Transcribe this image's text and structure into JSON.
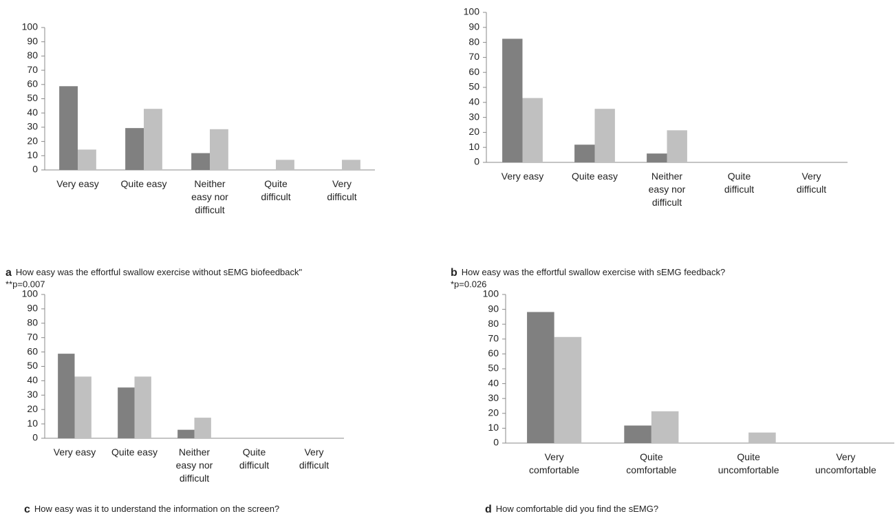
{
  "chart_data": [
    {
      "type": "bar",
      "label": "a",
      "caption": "How easy was the effortful swallow exercise without sEMG biofeedback\"",
      "note": "**p=0.007",
      "categories": [
        "Very easy",
        "Quite easy",
        "Neither easy nor difficult",
        "Quite difficult",
        "Very difficult"
      ],
      "series": [
        {
          "color": "#808080",
          "values": [
            58.8,
            29.4,
            11.8,
            0,
            0
          ]
        },
        {
          "color": "#c0c0c0",
          "values": [
            14.3,
            42.9,
            28.6,
            7.1,
            7.1
          ]
        }
      ],
      "ylim": [
        0,
        100
      ],
      "yticks": [
        0,
        10,
        20,
        30,
        40,
        50,
        60,
        70,
        80,
        90,
        100
      ]
    },
    {
      "type": "bar",
      "label": "b",
      "caption": "How easy was the effortful swallow exercise with sEMG feedback?",
      "note": "*p=0.026",
      "categories": [
        "Very easy",
        "Quite easy",
        "Neither easy nor difficult",
        "Quite difficult",
        "Very difficult"
      ],
      "series": [
        {
          "color": "#808080",
          "values": [
            82.4,
            11.8,
            5.9,
            0,
            0
          ]
        },
        {
          "color": "#c0c0c0",
          "values": [
            42.9,
            35.7,
            21.4,
            0,
            0
          ]
        }
      ],
      "ylim": [
        0,
        100
      ],
      "yticks": [
        0,
        10,
        20,
        30,
        40,
        50,
        60,
        70,
        80,
        90,
        100
      ]
    },
    {
      "type": "bar",
      "label": "c",
      "caption": "How easy was it to understand the information on the screen?",
      "categories": [
        "Very easy",
        "Quite easy",
        "Neither easy nor difficult",
        "Quite difficult",
        "Very difficult"
      ],
      "series": [
        {
          "color": "#808080",
          "values": [
            58.8,
            35.3,
            5.9,
            0,
            0
          ]
        },
        {
          "color": "#c0c0c0",
          "values": [
            42.9,
            42.9,
            14.3,
            0,
            0
          ]
        }
      ],
      "ylim": [
        0,
        100
      ],
      "yticks": [
        0,
        10,
        20,
        30,
        40,
        50,
        60,
        70,
        80,
        90,
        100
      ]
    },
    {
      "type": "bar",
      "label": "d",
      "caption": "How comfortable did you find the sEMG?",
      "categories": [
        "Very comfortable",
        "Quite comfortable",
        "Quite uncomfortable",
        "Very uncomfortable"
      ],
      "series": [
        {
          "color": "#808080",
          "values": [
            88.2,
            11.8,
            0,
            0
          ]
        },
        {
          "color": "#c0c0c0",
          "values": [
            71.4,
            21.4,
            7.1,
            0
          ]
        }
      ],
      "ylim": [
        0,
        100
      ],
      "yticks": [
        0,
        10,
        20,
        30,
        40,
        50,
        60,
        70,
        80,
        90,
        100
      ]
    }
  ]
}
